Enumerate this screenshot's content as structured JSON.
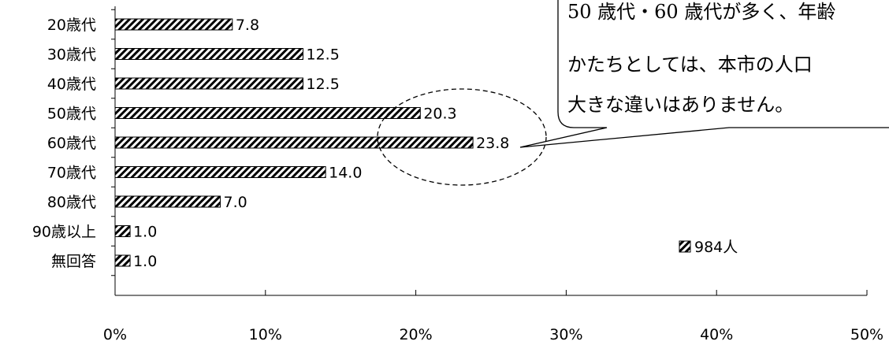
{
  "chart_data": {
    "type": "bar",
    "orientation": "horizontal",
    "categories": [
      "20歳代",
      "30歳代",
      "40歳代",
      "50歳代",
      "60歳代",
      "70歳代",
      "80歳代",
      "90歳以上",
      "無回答"
    ],
    "series": [
      {
        "name": "984人",
        "values": [
          7.8,
          12.5,
          12.5,
          20.3,
          23.8,
          14.0,
          7.0,
          1.0,
          1.0
        ]
      }
    ],
    "value_labels": [
      "7.8",
      "12.5",
      "12.5",
      "20.3",
      "23.8",
      "14.0",
      "7.0",
      "1.0",
      "1.0"
    ],
    "xlim": [
      0,
      50
    ],
    "xticks": [
      "0%",
      "10%",
      "20%",
      "30%",
      "40%",
      "50%"
    ],
    "grid": false,
    "legend_position": "right",
    "bar_pattern": "diagonal-hatch",
    "highlight_categories": [
      "50歳代",
      "60歳代"
    ],
    "callout": {
      "lines": [
        "50 歳代・60 歳代が多く、年齢",
        "かたちとしては、本市の人口",
        "大きな違いはありません。"
      ]
    }
  },
  "colors": {
    "bar_stroke": "#000000",
    "hatch": "#000000",
    "background": "#ffffff"
  }
}
